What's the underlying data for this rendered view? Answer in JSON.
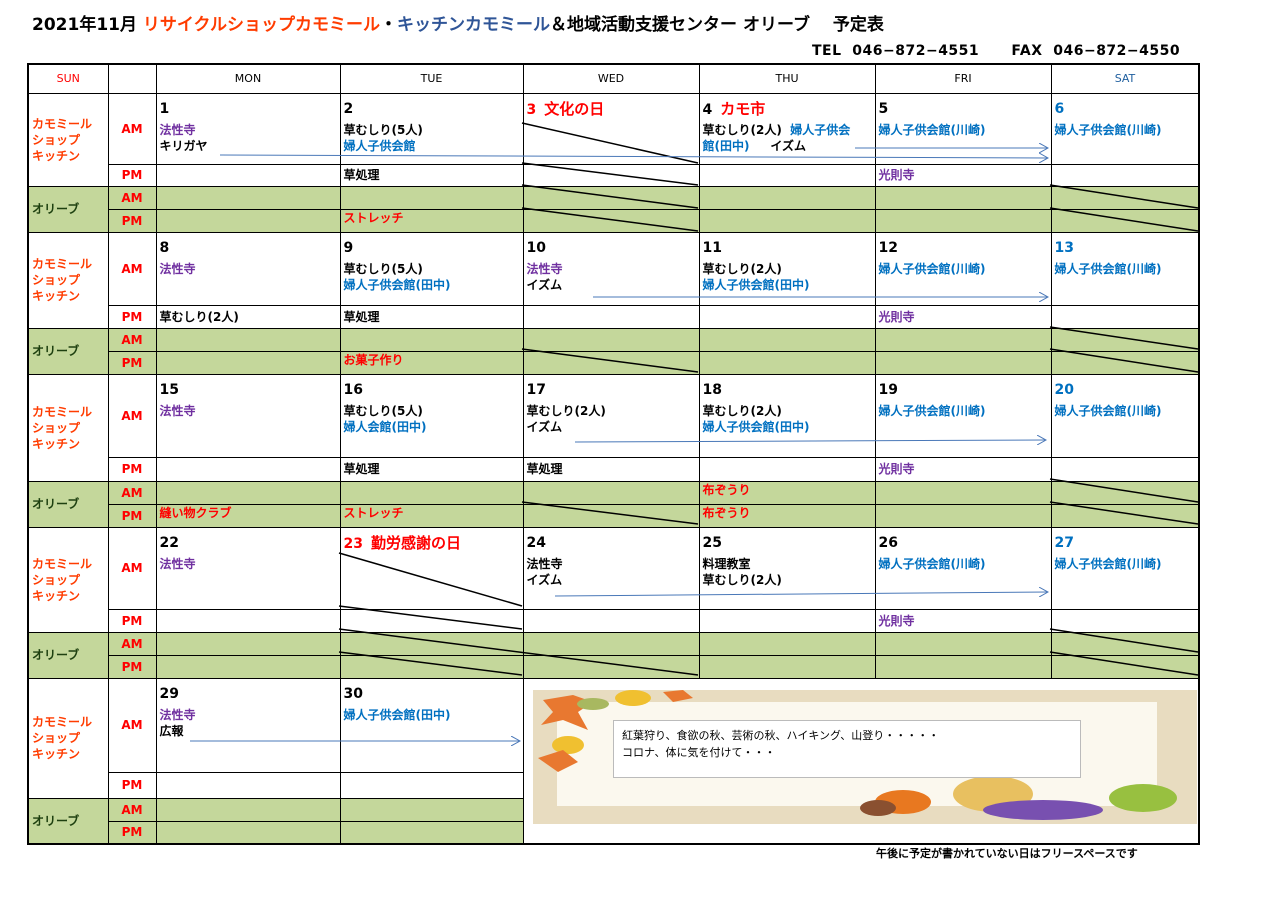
{
  "header": {
    "title_parts": [
      [
        "2021年11月 ",
        "#000000"
      ],
      [
        "リサイクルショップカモミール",
        "#ff3c00"
      ],
      [
        "・",
        "#000000"
      ],
      [
        "キッチンカモミール",
        "#2f5597"
      ],
      [
        "＆地域活動支援センター オリーブ　 予定表",
        "#000000"
      ]
    ],
    "contact": "TEL  046−872−4551      FAX  046−872−4550"
  },
  "colors": {
    "k": "#000000",
    "r": "#ff0000",
    "p": "#7030a0",
    "b": "#0070c0",
    "label_kitchen": "#ff3c00",
    "label_olive": "#1e4010",
    "green": "#c4d79b",
    "sat": "#1f5f9f",
    "sun": "#ff0000"
  },
  "days": [
    "SUN",
    "",
    "MON",
    "TUE",
    "WED",
    "THU",
    "FRI",
    "SAT"
  ],
  "labels": {
    "kitchen": [
      "カモミール",
      "ショップ",
      "キッチン"
    ],
    "olive": "オリーブ",
    "am": "AM",
    "pm": "PM"
  },
  "weeks": [
    {
      "cells": [
        {
          "date": "1",
          "dc": "k",
          "am": [
            [
              [
                "法性寺",
                "p"
              ]
            ],
            [
              [
                "キリガヤ",
                "k"
              ]
            ]
          ],
          "pm": [],
          "oam": [],
          "opm": []
        },
        {
          "date": "2",
          "dc": "k",
          "am": [
            [
              [
                "草むしり(5人)",
                "k"
              ]
            ],
            [
              [
                "婦人子供会館",
                "b"
              ]
            ]
          ],
          "pm": [
            [
              [
                "草処理",
                "k"
              ]
            ]
          ],
          "oam": [],
          "opm": [
            [
              [
                "ストレッチ",
                "r"
              ]
            ]
          ]
        },
        {
          "date": "3",
          "dc": "r",
          "holiday": "文化の日",
          "am": [],
          "pm": [],
          "oam": [],
          "opm": []
        },
        {
          "date": "4",
          "dc": "k",
          "holiday": "カモ市",
          "am": [
            [
              [
                "草むしり(2人)  ",
                "k"
              ],
              [
                "婦人子供会",
                "b"
              ]
            ],
            [
              [
                "館(田中)",
                "b"
              ],
              [
                "     イズム",
                "k"
              ]
            ]
          ],
          "pm": [],
          "oam": [],
          "opm": []
        },
        {
          "date": "5",
          "dc": "k",
          "am": [
            [
              [
                "婦人子供会館(川崎)",
                "b"
              ]
            ]
          ],
          "pm": [
            [
              [
                "光則寺",
                "p"
              ]
            ]
          ],
          "oam": [],
          "opm": []
        },
        {
          "date": "6",
          "dc": "b",
          "am": [
            [
              [
                "婦人子供会館(川崎)",
                "b"
              ]
            ]
          ],
          "pm": [],
          "oam": [],
          "opm": []
        }
      ]
    },
    {
      "cells": [
        {
          "date": "8",
          "dc": "k",
          "am": [
            [
              [
                "法性寺",
                "p"
              ]
            ]
          ],
          "pm": [
            [
              [
                "草むしり(2人)",
                "k"
              ]
            ]
          ],
          "oam": [],
          "opm": []
        },
        {
          "date": "9",
          "dc": "k",
          "am": [
            [
              [
                "草むしり(5人)",
                "k"
              ]
            ],
            [
              [
                "婦人子供会館(田中)",
                "b"
              ]
            ]
          ],
          "pm": [
            [
              [
                "草処理",
                "k"
              ]
            ]
          ],
          "oam": [],
          "opm": [
            [
              [
                "お菓子作り",
                "r"
              ]
            ]
          ]
        },
        {
          "date": "10",
          "dc": "k",
          "am": [
            [
              [
                "法性寺",
                "p"
              ]
            ],
            [
              [
                "イズム",
                "k"
              ]
            ]
          ],
          "pm": [],
          "oam": [],
          "opm": []
        },
        {
          "date": "11",
          "dc": "k",
          "am": [
            [
              [
                "草むしり(2人)",
                "k"
              ]
            ],
            [
              [
                "婦人子供会館(田中)",
                "b"
              ]
            ]
          ],
          "pm": [],
          "oam": [],
          "opm": []
        },
        {
          "date": "12",
          "dc": "k",
          "am": [
            [
              [
                "婦人子供会館(川崎)",
                "b"
              ]
            ]
          ],
          "pm": [
            [
              [
                "光則寺",
                "p"
              ]
            ]
          ],
          "oam": [],
          "opm": []
        },
        {
          "date": "13",
          "dc": "b",
          "am": [
            [
              [
                "婦人子供会館(川崎)",
                "b"
              ]
            ]
          ],
          "pm": [],
          "oam": [],
          "opm": []
        }
      ]
    },
    {
      "cells": [
        {
          "date": "15",
          "dc": "k",
          "am": [
            [
              [
                "法性寺",
                "p"
              ]
            ]
          ],
          "pm": [],
          "oam": [],
          "opm": [
            [
              [
                "縫い物クラブ",
                "r"
              ]
            ]
          ]
        },
        {
          "date": "16",
          "dc": "k",
          "am": [
            [
              [
                "草むしり(5人)",
                "k"
              ]
            ],
            [
              [
                "婦人会館(田中)",
                "b"
              ]
            ]
          ],
          "pm": [
            [
              [
                "草処理",
                "k"
              ]
            ]
          ],
          "oam": [],
          "opm": [
            [
              [
                "ストレッチ",
                "r"
              ]
            ]
          ]
        },
        {
          "date": "17",
          "dc": "k",
          "am": [
            [
              [
                "草むしり(2人)",
                "k"
              ]
            ],
            [
              [
                "イズム",
                "k"
              ]
            ]
          ],
          "pm": [
            [
              [
                "草処理",
                "k"
              ]
            ]
          ],
          "oam": [],
          "opm": []
        },
        {
          "date": "18",
          "dc": "k",
          "am": [
            [
              [
                "草むしり(2人)",
                "k"
              ]
            ],
            [
              [
                "婦人子供会館(田中)",
                "b"
              ]
            ]
          ],
          "pm": [],
          "oam": [
            [
              [
                "布ぞうり",
                "r"
              ]
            ]
          ],
          "opm": [
            [
              [
                "布ぞうり",
                "r"
              ]
            ]
          ]
        },
        {
          "date": "19",
          "dc": "k",
          "am": [
            [
              [
                "婦人子供会館(川崎)",
                "b"
              ]
            ]
          ],
          "pm": [
            [
              [
                "光則寺",
                "p"
              ]
            ]
          ],
          "oam": [],
          "opm": []
        },
        {
          "date": "20",
          "dc": "b",
          "am": [
            [
              [
                "婦人子供会館(川崎)",
                "b"
              ]
            ]
          ],
          "pm": [],
          "oam": [],
          "opm": []
        }
      ]
    },
    {
      "cells": [
        {
          "date": "22",
          "dc": "k",
          "am": [
            [
              [
                "法性寺",
                "p"
              ]
            ]
          ],
          "pm": [],
          "oam": [],
          "opm": []
        },
        {
          "date": "23",
          "dc": "r",
          "holiday": "勤労感謝の日",
          "am": [],
          "pm": [],
          "oam": [],
          "opm": []
        },
        {
          "date": "24",
          "dc": "k",
          "am": [
            [
              [
                "法性寺",
                "k"
              ]
            ],
            [
              [
                "イズム",
                "k"
              ]
            ]
          ],
          "pm": [],
          "oam": [],
          "opm": []
        },
        {
          "date": "25",
          "dc": "k",
          "am": [
            [
              [
                "料理教室",
                "k"
              ]
            ],
            [
              [
                "草むしり(2人)",
                "k"
              ]
            ]
          ],
          "pm": [],
          "oam": [],
          "opm": []
        },
        {
          "date": "26",
          "dc": "k",
          "am": [
            [
              [
                "婦人子供会館(川崎)",
                "b"
              ]
            ]
          ],
          "pm": [
            [
              [
                "光則寺",
                "p"
              ]
            ]
          ],
          "oam": [],
          "opm": []
        },
        {
          "date": "27",
          "dc": "b",
          "am": [
            [
              [
                "婦人子供会館(川崎)",
                "b"
              ]
            ]
          ],
          "pm": [],
          "oam": [],
          "opm": []
        }
      ]
    },
    {
      "cells": [
        {
          "date": "29",
          "dc": "k",
          "am": [
            [
              [
                "法性寺",
                "p"
              ]
            ],
            [
              [
                "広報",
                "k"
              ]
            ]
          ],
          "pm": [],
          "oam": [],
          "opm": []
        },
        {
          "date": "30",
          "dc": "k",
          "am": [
            [
              [
                "婦人子供会館(田中)",
                "b"
              ]
            ]
          ],
          "pm": [],
          "oam": [],
          "opm": []
        }
      ]
    }
  ],
  "message": {
    "lines": [
      "紅葉狩り、食欲の秋、芸術の秋、ハイキング、山登り・・・・・",
      "コロナ、体に気を付けて・・・"
    ]
  },
  "footnote": "午後に予定が書かれていない日はフリースペースです"
}
